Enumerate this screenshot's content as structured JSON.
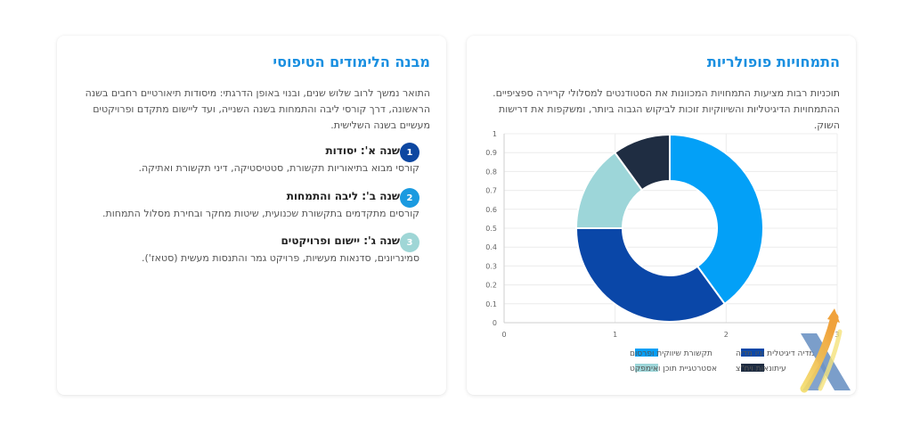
{
  "left_card": {
    "title": "מבנה הלימודים הטיפוסי",
    "description": "התואר נמשך לרוב שלוש שנים, ובנוי באופן הדרגתי: מיסודות תיאורטיים רחבים בשנה הראשונה, דרך קורסי ליבה והתמחות בשנה השנייה, ועד ליישום מתקדם ופרויקטים מעשיים בשנה השלישית.",
    "steps": [
      {
        "number": "1",
        "title": "שנה א': יסודות",
        "desc": "קורסי מבוא בתיאוריות תקשורת, סטטיסטיקה, דיני תקשורת ואתיקה.",
        "color": "#0d47a1"
      },
      {
        "number": "2",
        "title": "שנה ב': ליבה והתמחות",
        "desc": "קורסים מתקדמים בתקשורת שכנועית, שיטות מחקר ובחירת מסלול התמחות.",
        "color": "#1a9ae0"
      },
      {
        "number": "3",
        "title": "שנה ג': יישום ופרויקטים",
        "desc": "סמינריונים, סדנאות מעשיות, פרויקט גמר והתנסות מעשית (סטאז').",
        "color": "#9fd6d6"
      }
    ]
  },
  "right_card": {
    "title": "התמחויות פופולריות",
    "description": "תוכניות רבות מציעות התמחויות המכוונות את הסטודנטים למסלולי קריירה ספציפיים. ההתמחויות הדיגיטליות והשיווקיות זוכות לביקוש הגבוה ביותר, ומשקפות את דרישות השוק."
  },
  "chart_data": {
    "type": "pie",
    "donut": true,
    "categories": [
      "תקשורת שיווקית ופרסום",
      "מדיה דיגיטלית וניו מדיה",
      "אסטרטגיית תוכן ואימפקט",
      "עיתונאות ויח\"צ"
    ],
    "values": [
      40,
      35,
      15,
      10
    ],
    "colors": [
      "#03a0f7",
      "#0a47a8",
      "#9dd6d9",
      "#1f2d42"
    ],
    "y_ticks": [
      "0",
      "0.1",
      "0.2",
      "0.3",
      "0.4",
      "0.5",
      "0.6",
      "0.7",
      "0.8",
      "0.9",
      "1"
    ],
    "x_ticks": [
      "0",
      "1",
      "2",
      "3"
    ],
    "legend_position": "bottom",
    "grid": true
  },
  "logo": {
    "icon": "x-arrow-logo-icon"
  }
}
